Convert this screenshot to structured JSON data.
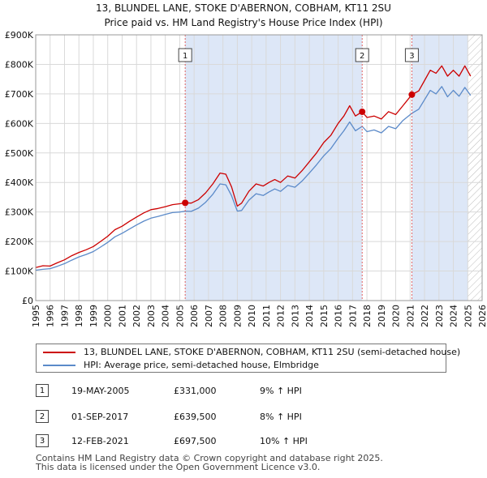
{
  "title": {
    "line1": "13, BLUNDEL LANE, STOKE D'ABERNON, COBHAM, KT11 2SU",
    "line2": "Price paid vs. HM Land Registry's House Price Index (HPI)"
  },
  "chart_data": {
    "type": "line",
    "ylim": [
      0,
      900000
    ],
    "xlim": [
      1995,
      2026
    ],
    "y_ticks": [
      {
        "value": 0,
        "label": "£0"
      },
      {
        "value": 100000,
        "label": "£100K"
      },
      {
        "value": 200000,
        "label": "£200K"
      },
      {
        "value": 300000,
        "label": "£300K"
      },
      {
        "value": 400000,
        "label": "£400K"
      },
      {
        "value": 500000,
        "label": "£500K"
      },
      {
        "value": 600000,
        "label": "£600K"
      },
      {
        "value": 700000,
        "label": "£700K"
      },
      {
        "value": 800000,
        "label": "£800K"
      },
      {
        "value": 900000,
        "label": "£900K"
      }
    ],
    "x_ticks": [
      "1995",
      "1996",
      "1997",
      "1998",
      "1999",
      "2000",
      "2001",
      "2002",
      "2003",
      "2004",
      "2005",
      "2006",
      "2007",
      "2008",
      "2009",
      "2010",
      "2011",
      "2012",
      "2013",
      "2014",
      "2015",
      "2016",
      "2017",
      "2018",
      "2019",
      "2020",
      "2021",
      "2022",
      "2023",
      "2024",
      "2025",
      "2026"
    ],
    "grid": true,
    "shaded_regions": [
      {
        "from": 2005.38,
        "to": 2017.67,
        "color": "#dde7f7"
      },
      {
        "from": 2021.12,
        "to": 2025.0,
        "color": "#dde7f7"
      }
    ],
    "forecast_hatch_from": 2025.0,
    "series": [
      {
        "name": "13, BLUNDEL LANE, STOKE D'ABERNON, COBHAM, KT11 2SU (semi-detached house)",
        "color": "#cc0000",
        "x": [
          1995.0,
          1995.5,
          1996.0,
          1996.5,
          1997.0,
          1997.5,
          1998.0,
          1998.5,
          1999.0,
          1999.5,
          2000.0,
          2000.5,
          2001.0,
          2001.5,
          2002.0,
          2002.5,
          2003.0,
          2003.5,
          2004.0,
          2004.5,
          2005.0,
          2005.38,
          2005.8,
          2006.3,
          2006.8,
          2007.3,
          2007.8,
          2008.2,
          2008.6,
          2009.0,
          2009.3,
          2009.8,
          2010.3,
          2010.8,
          2011.2,
          2011.6,
          2012.0,
          2012.5,
          2013.0,
          2013.5,
          2014.0,
          2014.5,
          2015.0,
          2015.5,
          2016.0,
          2016.4,
          2016.8,
          2017.2,
          2017.67,
          2018.0,
          2018.5,
          2019.0,
          2019.5,
          2020.0,
          2020.5,
          2021.12,
          2021.6,
          2022.0,
          2022.4,
          2022.8,
          2023.2,
          2023.6,
          2024.0,
          2024.4,
          2024.8,
          2025.2
        ],
        "values": [
          112000,
          118000,
          117000,
          128000,
          138000,
          152000,
          163000,
          172000,
          183000,
          200000,
          218000,
          240000,
          252000,
          268000,
          283000,
          297000,
          308000,
          312000,
          318000,
          325000,
          328000,
          331000,
          330000,
          342000,
          365000,
          395000,
          432000,
          428000,
          385000,
          320000,
          330000,
          370000,
          395000,
          388000,
          400000,
          410000,
          400000,
          422000,
          415000,
          440000,
          470000,
          500000,
          535000,
          560000,
          600000,
          625000,
          660000,
          625000,
          639500,
          620000,
          625000,
          615000,
          640000,
          630000,
          660000,
          697500,
          710000,
          745000,
          780000,
          770000,
          795000,
          760000,
          780000,
          760000,
          795000,
          760000
        ]
      },
      {
        "name": "HPI: Average price, semi-detached house, Elmbridge",
        "color": "#5b8ac9",
        "x": [
          1995.0,
          1995.5,
          1996.0,
          1996.5,
          1997.0,
          1997.5,
          1998.0,
          1998.5,
          1999.0,
          1999.5,
          2000.0,
          2000.5,
          2001.0,
          2001.5,
          2002.0,
          2002.5,
          2003.0,
          2003.5,
          2004.0,
          2004.5,
          2005.0,
          2005.38,
          2005.8,
          2006.3,
          2006.8,
          2007.3,
          2007.8,
          2008.2,
          2008.6,
          2009.0,
          2009.3,
          2009.8,
          2010.3,
          2010.8,
          2011.2,
          2011.6,
          2012.0,
          2012.5,
          2013.0,
          2013.5,
          2014.0,
          2014.5,
          2015.0,
          2015.5,
          2016.0,
          2016.4,
          2016.8,
          2017.2,
          2017.67,
          2018.0,
          2018.5,
          2019.0,
          2019.5,
          2020.0,
          2020.5,
          2021.12,
          2021.6,
          2022.0,
          2022.4,
          2022.8,
          2023.2,
          2023.6,
          2024.0,
          2024.4,
          2024.8,
          2025.2
        ],
        "values": [
          103000,
          106000,
          108000,
          116000,
          125000,
          137000,
          148000,
          156000,
          166000,
          181000,
          197000,
          216000,
          228000,
          242000,
          256000,
          269000,
          279000,
          285000,
          292000,
          298000,
          300000,
          303000,
          302000,
          313000,
          333000,
          360000,
          395000,
          392000,
          355000,
          303000,
          305000,
          340000,
          362000,
          356000,
          368000,
          378000,
          370000,
          390000,
          384000,
          405000,
          432000,
          460000,
          490000,
          515000,
          550000,
          575000,
          605000,
          575000,
          590000,
          572000,
          578000,
          568000,
          590000,
          582000,
          610000,
          634000,
          648000,
          680000,
          712000,
          700000,
          725000,
          690000,
          712000,
          692000,
          722000,
          695000
        ]
      }
    ],
    "sales": [
      {
        "num": "1",
        "x": 2005.38,
        "value": 331000
      },
      {
        "num": "2",
        "x": 2017.67,
        "value": 639500
      },
      {
        "num": "3",
        "x": 2021.12,
        "value": 697500
      }
    ]
  },
  "legend": {
    "property": "13, BLUNDEL LANE, STOKE D'ABERNON, COBHAM, KT11 2SU (semi-detached house)",
    "hpi": "HPI: Average price, semi-detached house, Elmbridge"
  },
  "transactions": [
    {
      "num": "1",
      "date": "19-MAY-2005",
      "price": "£331,000",
      "hpi": "9% ↑ HPI"
    },
    {
      "num": "2",
      "date": "01-SEP-2017",
      "price": "£639,500",
      "hpi": "8% ↑ HPI"
    },
    {
      "num": "3",
      "date": "12-FEB-2021",
      "price": "£697,500",
      "hpi": "10% ↑ HPI"
    }
  ],
  "footer": {
    "line1": "Contains HM Land Registry data © Crown copyright and database right 2025.",
    "line2": "This data is licensed under the Open Government Licence v3.0."
  }
}
